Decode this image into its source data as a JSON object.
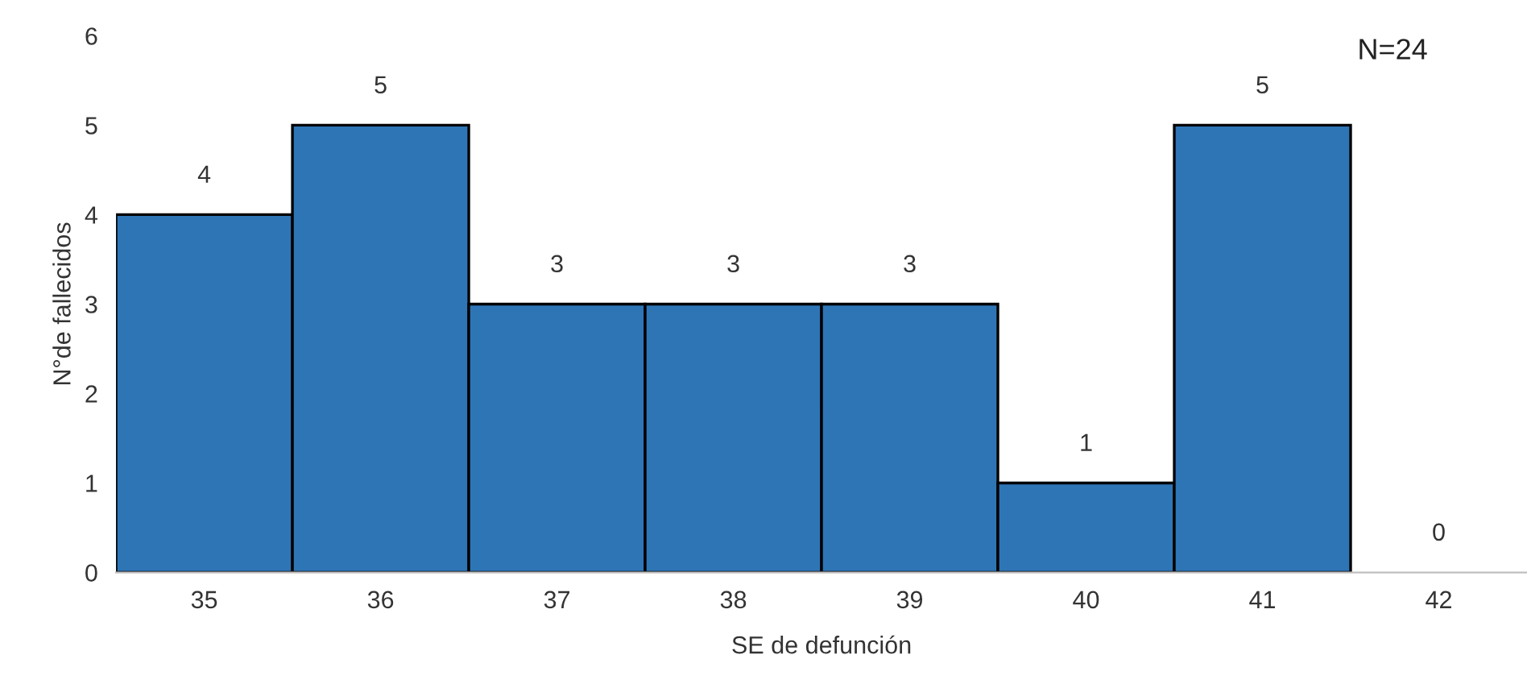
{
  "chart_data": {
    "type": "bar",
    "xlabel": "SE de defunción",
    "ylabel": "N°de fallecidos",
    "categories": [
      "35",
      "36",
      "37",
      "38",
      "39",
      "40",
      "41",
      "42"
    ],
    "values": [
      4,
      5,
      3,
      3,
      3,
      1,
      5,
      0
    ],
    "color": "#2e75b6",
    "ylim": [
      0,
      6
    ],
    "yticks": [
      0,
      1,
      2,
      3,
      4,
      5,
      6
    ],
    "grid": false,
    "data_labels": true,
    "annotations": [
      "N=24"
    ]
  }
}
